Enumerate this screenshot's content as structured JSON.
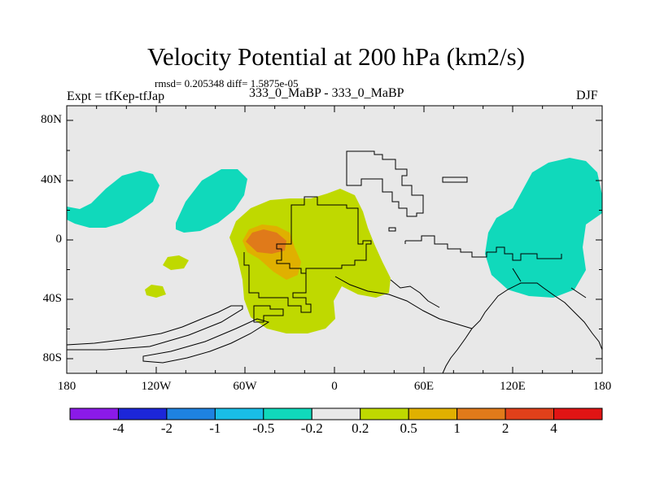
{
  "title": "Velocity Potential at 200 hPa (km2/s)",
  "stats": "rmsd= 0.205348 diff= 1.5875e-05",
  "left_label": "Expt = tfKep-tfJap",
  "center_label": "333_0_MaBP - 333_0_MaBP",
  "right_label": "DJF",
  "lat_labels": [
    "80N",
    "40N",
    "0",
    "40S",
    "80S"
  ],
  "lon_labels": [
    "180",
    "120W",
    "60W",
    "0",
    "60E",
    "120E",
    "180"
  ],
  "colorbar": {
    "labels": [
      "-4",
      "-2",
      "-1",
      "-0.5",
      "-0.2",
      "0.2",
      "0.5",
      "1",
      "2",
      "4"
    ],
    "colors": [
      "#8b1ae8",
      "#1c26d9",
      "#1e82e0",
      "#19bde6",
      "#10d9bb",
      "#e8e8e8",
      "#bfd900",
      "#e0b000",
      "#e07a1a",
      "#e0401a",
      "#e01414"
    ]
  },
  "map_colors": {
    "background": "#e8e8e8",
    "negative": "#10d9bb",
    "positive": "#bfd900",
    "positive_mid": "#e0b000",
    "positive_high": "#e07a1a"
  }
}
